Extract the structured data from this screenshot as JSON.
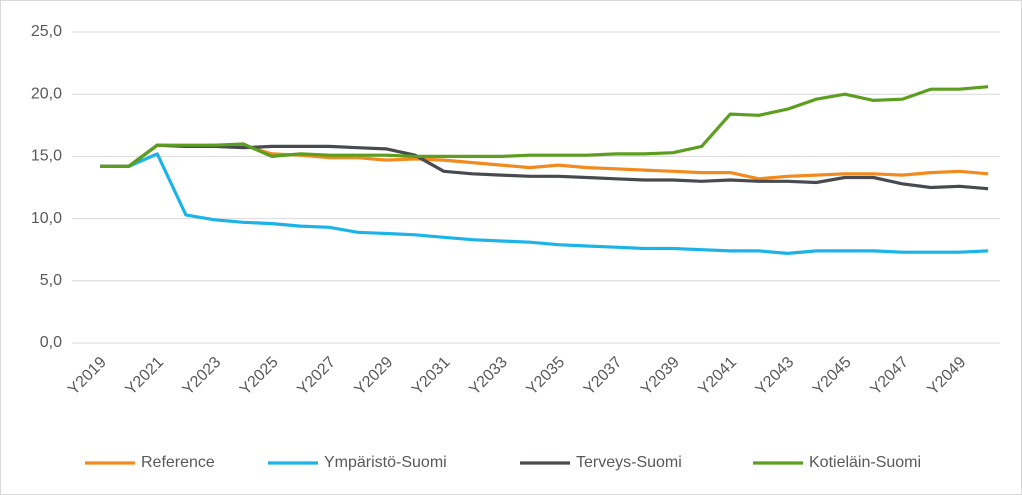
{
  "chart_data": {
    "type": "line",
    "categories": [
      "Y2019",
      null,
      "Y2021",
      null,
      "Y2023",
      null,
      "Y2025",
      null,
      "Y2027",
      null,
      "Y2029",
      null,
      "Y2031",
      null,
      "Y2033",
      null,
      "Y2035",
      null,
      "Y2037",
      null,
      "Y2039",
      null,
      "Y2041",
      null,
      "Y2043",
      null,
      "Y2045",
      null,
      "Y2047",
      null,
      "Y2049",
      null
    ],
    "series": [
      {
        "name": "Reference",
        "color": "#f28a1e",
        "values": [
          14.2,
          14.2,
          15.9,
          15.8,
          15.9,
          15.9,
          15.2,
          15.1,
          14.9,
          14.9,
          14.7,
          14.8,
          14.7,
          14.5,
          14.3,
          14.1,
          14.3,
          14.1,
          14.0,
          13.9,
          13.8,
          13.7,
          13.7,
          13.2,
          13.4,
          13.5,
          13.6,
          13.6,
          13.5,
          13.7,
          13.8,
          13.6
        ]
      },
      {
        "name": "Ympäristö-Suomi",
        "color": "#1cb4e8",
        "values": [
          14.2,
          14.2,
          15.2,
          10.3,
          9.9,
          9.7,
          9.6,
          9.4,
          9.3,
          8.9,
          8.8,
          8.7,
          8.5,
          8.3,
          8.2,
          8.1,
          7.9,
          7.8,
          7.7,
          7.6,
          7.6,
          7.5,
          7.4,
          7.4,
          7.2,
          7.4,
          7.4,
          7.4,
          7.3,
          7.3,
          7.3,
          7.4
        ]
      },
      {
        "name": "Terveys-Suomi",
        "color": "#474a4f",
        "values": [
          14.2,
          14.2,
          15.9,
          15.8,
          15.8,
          15.7,
          15.8,
          15.8,
          15.8,
          15.7,
          15.6,
          15.1,
          13.8,
          13.6,
          13.5,
          13.4,
          13.4,
          13.3,
          13.2,
          13.1,
          13.1,
          13.0,
          13.1,
          13.0,
          13.0,
          12.9,
          13.3,
          13.3,
          12.8,
          12.5,
          12.6,
          12.4
        ]
      },
      {
        "name": "Kotieläin-Suomi",
        "color": "#5c9e1f",
        "values": [
          14.2,
          14.2,
          15.9,
          15.9,
          15.9,
          16.0,
          15.0,
          15.2,
          15.1,
          15.1,
          15.1,
          15.0,
          15.0,
          15.0,
          15.0,
          15.1,
          15.1,
          15.1,
          15.2,
          15.2,
          15.3,
          15.8,
          18.4,
          18.3,
          18.8,
          19.6,
          20.0,
          19.5,
          19.6,
          20.4,
          20.4,
          20.6
        ]
      }
    ],
    "ylim": [
      0,
      25
    ],
    "yticks": [
      {
        "value": 0,
        "label": "0,0"
      },
      {
        "value": 5,
        "label": "5,0"
      },
      {
        "value": 10,
        "label": "10,0"
      },
      {
        "value": 15,
        "label": "15,0"
      },
      {
        "value": 20,
        "label": "20,0"
      },
      {
        "value": 25,
        "label": "25,0"
      }
    ],
    "grid": true,
    "legend": "bottom"
  }
}
